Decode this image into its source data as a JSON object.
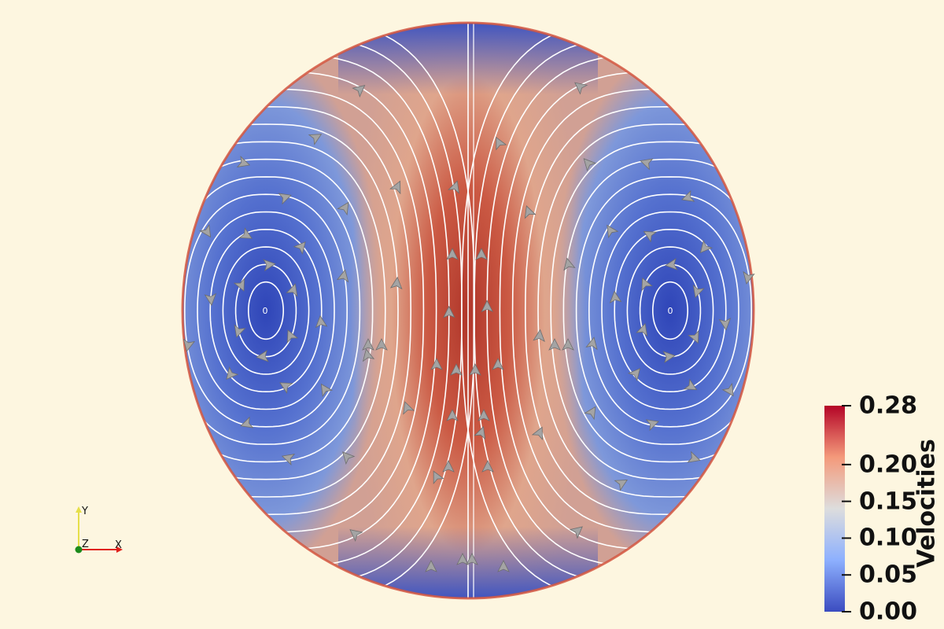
{
  "colorbar": {
    "title": "Velocities",
    "ticks": [
      "0.28",
      "0.20",
      "0.15",
      "0.10",
      "0.05",
      "0.00"
    ],
    "tick_values": [
      0.28,
      0.2,
      0.15,
      0.1,
      0.05,
      0.0
    ],
    "range": [
      0.0,
      0.28
    ],
    "colors": [
      "#3b4cc0",
      "#8db0fe",
      "#dddddd",
      "#f49a7b",
      "#b40426"
    ]
  },
  "axes_widget": {
    "x_label": "X",
    "y_label": "Y",
    "z_label": "Z",
    "x_color": "#e0201b",
    "y_color": "#e6df4a",
    "z_color": "#1b8a1b"
  },
  "vortex_labels": {
    "left": "0",
    "right": "0"
  },
  "scene": {
    "background": "#fdf6e0",
    "field_name": "Velocities",
    "streamline_color": "#ffffff",
    "glyph_color": "#a8a8a8"
  }
}
